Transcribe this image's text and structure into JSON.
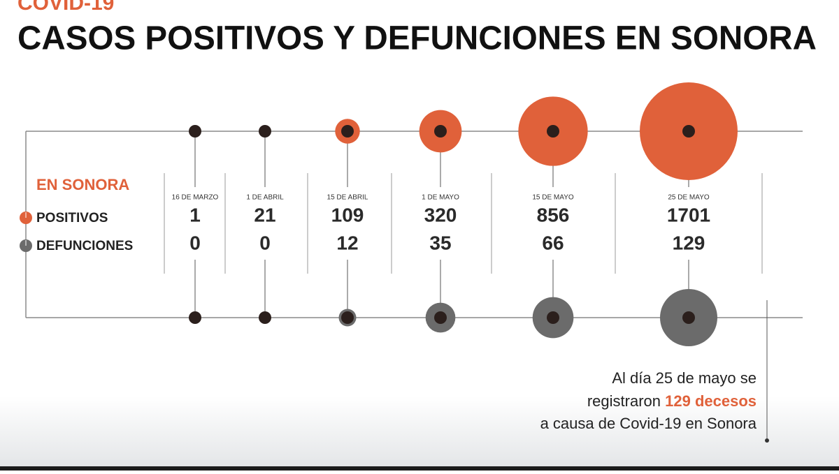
{
  "chart_data": {
    "type": "bubble",
    "kicker": "COVID-19",
    "title": "CASOS POSITIVOS Y DEFUNCIONES EN SONORA",
    "legend_title": "EN SONORA",
    "categories": [
      "16 DE MARZO",
      "1 DE ABRIL",
      "15 DE ABRIL",
      "1 DE MAYO",
      "15 DE MAYO",
      "25 DE MAYO"
    ],
    "series": [
      {
        "name": "POSITIVOS",
        "color": "#e0613a",
        "values": [
          1,
          21,
          109,
          320,
          856,
          1701
        ]
      },
      {
        "name": "DEFUNCIONES",
        "color": "#6b6b6b",
        "values": [
          0,
          0,
          12,
          35,
          66,
          129
        ]
      }
    ],
    "annotation": [
      "Al día 25 de mayo se",
      "registraron",
      "129 decesos",
      "a causa de Covid-19 en Sonora"
    ]
  }
}
